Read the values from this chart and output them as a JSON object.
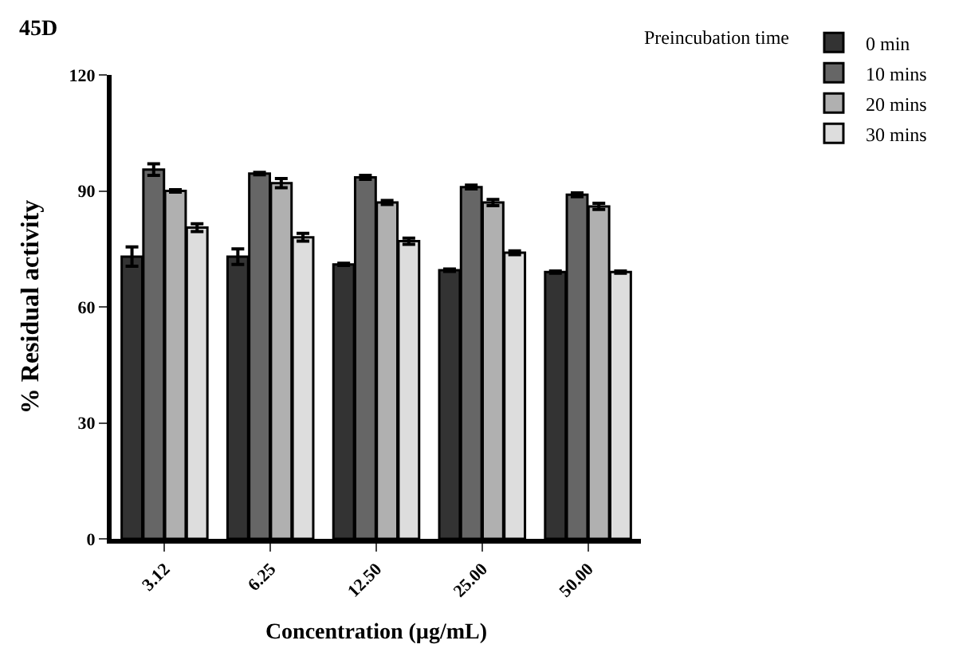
{
  "chart_data": {
    "type": "bar",
    "title": "45D",
    "xlabel": "Concentration (µg/mL)",
    "ylabel": "% Residual activity",
    "legend_title": "Preincubation time",
    "categories": [
      "3.12",
      "6.25",
      "12.50",
      "25.00",
      "50.00"
    ],
    "series": [
      {
        "name": "0 min",
        "color": "#333333",
        "values": [
          73,
          73,
          71,
          69.5,
          69
        ],
        "errors": [
          2.5,
          2,
          0.3,
          0.3,
          0.3
        ]
      },
      {
        "name": "10 mins",
        "color": "#666666",
        "values": [
          95.5,
          94.5,
          93.5,
          91,
          89
        ],
        "errors": [
          1.5,
          0.3,
          0.5,
          0.5,
          0.5
        ]
      },
      {
        "name": "20 mins",
        "color": "#b0b0b0",
        "values": [
          90,
          92,
          87,
          87,
          86
        ],
        "errors": [
          0.3,
          1.2,
          0.5,
          0.8,
          0.8
        ]
      },
      {
        "name": "30 mins",
        "color": "#dddddd",
        "values": [
          80.5,
          78,
          77,
          74,
          69
        ],
        "errors": [
          1,
          1,
          0.8,
          0.5,
          0.3
        ]
      }
    ],
    "ylim": [
      0,
      120
    ],
    "yticks": [
      0,
      30,
      60,
      90,
      120
    ],
    "legend": "top right"
  }
}
